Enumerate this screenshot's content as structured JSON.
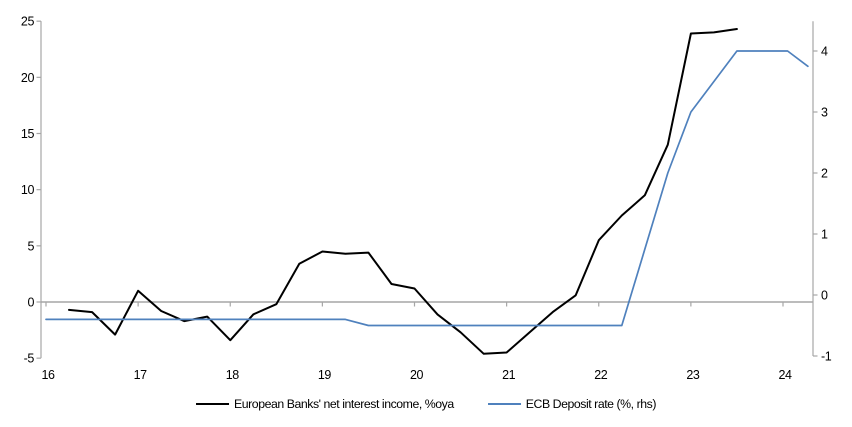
{
  "chart_data": {
    "type": "line",
    "x_axis": {
      "ticks": [
        16,
        17,
        18,
        19,
        20,
        21,
        22,
        23,
        24
      ],
      "min": 16,
      "max": 24.33
    },
    "left_axis": {
      "ticks": [
        25,
        20,
        15,
        10,
        5,
        0,
        "-5"
      ],
      "tick_values": [
        25,
        20,
        15,
        10,
        5,
        0,
        -5
      ],
      "min": -5,
      "max": 25
    },
    "right_axis": {
      "ticks": [
        4,
        3,
        2,
        1,
        0,
        "-1"
      ],
      "tick_values": [
        4,
        3,
        2,
        1,
        0,
        -1
      ],
      "min": -1,
      "max": 4.5
    },
    "grid": "zero-line-only",
    "legend_position": "bottom-center",
    "series": [
      {
        "name": "European Banks' net interest income, %oya",
        "axis": "left",
        "color": "#000000",
        "stroke_width": 2,
        "points": [
          [
            16.25,
            -0.7
          ],
          [
            16.5,
            -0.9
          ],
          [
            16.75,
            -2.9
          ],
          [
            17.0,
            1.0
          ],
          [
            17.25,
            -0.8
          ],
          [
            17.5,
            -1.7
          ],
          [
            17.75,
            -1.3
          ],
          [
            18.0,
            -3.4
          ],
          [
            18.25,
            -1.1
          ],
          [
            18.5,
            -0.2
          ],
          [
            18.75,
            3.4
          ],
          [
            19.0,
            4.5
          ],
          [
            19.25,
            4.3
          ],
          [
            19.5,
            4.4
          ],
          [
            19.75,
            1.6
          ],
          [
            20.0,
            1.2
          ],
          [
            20.25,
            -1.1
          ],
          [
            20.5,
            -2.7
          ],
          [
            20.75,
            -4.6
          ],
          [
            21.0,
            -4.5
          ],
          [
            21.25,
            -2.7
          ],
          [
            21.5,
            -0.9
          ],
          [
            21.75,
            0.6
          ],
          [
            22.0,
            5.5
          ],
          [
            22.25,
            7.7
          ],
          [
            22.5,
            9.5
          ],
          [
            22.75,
            14.0
          ],
          [
            23.0,
            23.9
          ],
          [
            23.25,
            24.0
          ],
          [
            23.5,
            24.3
          ]
        ]
      },
      {
        "name": "ECB Deposit rate (%, rhs)",
        "axis": "right",
        "color": "#4F81BD",
        "stroke_width": 1.7,
        "points": [
          [
            16.0,
            -0.4
          ],
          [
            19.25,
            -0.4
          ],
          [
            19.5,
            -0.5
          ],
          [
            22.25,
            -0.5
          ],
          [
            22.5,
            0.75
          ],
          [
            22.75,
            2.0
          ],
          [
            23.0,
            3.0
          ],
          [
            23.25,
            3.5
          ],
          [
            23.5,
            4.0
          ],
          [
            24.05,
            4.0
          ],
          [
            24.27,
            3.75
          ]
        ]
      }
    ]
  },
  "legend": {
    "series1": "European Banks' net interest income, %oya",
    "series2": "ECB Deposit rate (%, rhs)"
  },
  "colors": {
    "axis_gray": "#A6A6A6",
    "black_line": "#000000",
    "blue_line": "#4F81BD",
    "background": "#FFFFFF",
    "text": "#000000"
  }
}
